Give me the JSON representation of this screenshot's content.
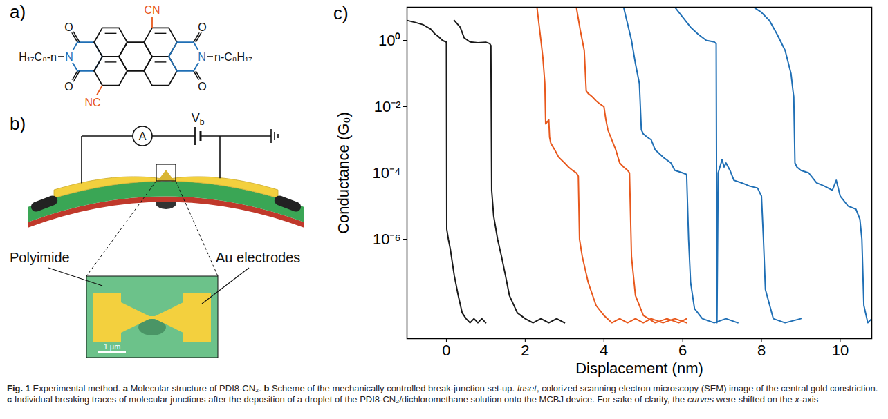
{
  "panel_a": {
    "letter": "a)",
    "atoms": {
      "cyano_top": "CN",
      "cyano_bottom": "NC",
      "nitrogen": "N",
      "oxygen": "O"
    },
    "chain_left": "H₁₇C₈-n",
    "chain_right": "n-C₈H₁₇"
  },
  "panel_b": {
    "letter": "b)",
    "ammeter": "A",
    "bias": {
      "text": "V",
      "subscript": "b"
    },
    "substrate_label": "Polyimide",
    "electrode_label": "Au electrodes",
    "scale_bar": "1 μm"
  },
  "panel_c": {
    "letter": "c)"
  },
  "chart_data": {
    "type": "line",
    "xlabel": "Displacement (nm)",
    "ylabel": "Conductance (G₀)",
    "log": "y",
    "grid": false,
    "xlim": [
      -1,
      10.8
    ],
    "xticks": [
      0,
      2,
      4,
      6,
      8,
      10
    ],
    "ylim": [
      1e-09,
      10
    ],
    "yticks": [
      {
        "value": 1,
        "label": "10⁰"
      },
      {
        "value": 0.01,
        "label": "10⁻²"
      },
      {
        "value": 0.0001,
        "label": "10⁻⁴"
      },
      {
        "value": 1e-06,
        "label": "10⁻⁶"
      }
    ],
    "series": [
      {
        "color": "#1a1a1a",
        "x": [
          -1,
          -0.8,
          -0.6,
          -0.4,
          -0.3,
          -0.2,
          -0.1,
          -0.02,
          0,
          0.01,
          0.05,
          0.1,
          0.15,
          0.2,
          0.3,
          0.4,
          0.5,
          0.6,
          0.7,
          0.8,
          0.9,
          1.0
        ],
        "values": [
          4.0,
          3.5,
          3.0,
          2.2,
          1.6,
          1.3,
          1.0,
          0.9,
          0.9,
          2e-06,
          1e-06,
          5e-07,
          2e-07,
          8e-08,
          2e-08,
          6e-09,
          4e-09,
          3e-09,
          4e-09,
          3e-09,
          4e-09,
          3e-09
        ]
      },
      {
        "color": "#1a1a1a",
        "x": [
          0.2,
          0.35,
          0.45,
          0.6,
          0.8,
          1.0,
          1.1,
          1.13,
          1.15,
          1.2,
          1.3,
          1.4,
          1.5,
          1.6,
          1.8,
          2.0,
          2.2,
          2.4,
          2.6,
          2.8,
          3.0
        ],
        "values": [
          4.0,
          2.5,
          1.2,
          0.9,
          0.85,
          0.88,
          0.8,
          0.7,
          3e-05,
          5e-06,
          1e-06,
          3e-07,
          8e-08,
          2e-08,
          6e-09,
          4e-09,
          3e-09,
          4e-09,
          3e-09,
          4e-09,
          3e-09
        ]
      },
      {
        "color": "#e8581c",
        "x": [
          2.3,
          2.4,
          2.45,
          2.5,
          2.52,
          2.6,
          2.62,
          2.65,
          2.75,
          2.85,
          3.0,
          3.1,
          3.2,
          3.3,
          3.35,
          3.38,
          3.45,
          3.6,
          3.8,
          4.0,
          4.2,
          4.4,
          4.6,
          4.8,
          5.0,
          5.2,
          5.5,
          5.8,
          6.1
        ],
        "values": [
          10,
          1.0,
          0.3,
          0.05,
          0.003,
          0.004,
          0.0012,
          0.0008,
          0.0005,
          0.0003,
          0.0002,
          0.00015,
          0.00012,
          0.0001,
          8e-05,
          1e-06,
          3e-07,
          5e-08,
          1e-08,
          5e-09,
          3e-09,
          4e-09,
          3e-09,
          4e-09,
          3e-09,
          4e-09,
          3e-09,
          4e-09,
          3e-09
        ]
      },
      {
        "color": "#e8581c",
        "x": [
          3.3,
          3.4,
          3.5,
          3.55,
          3.6,
          3.7,
          3.8,
          3.9,
          4.0,
          4.05,
          4.1,
          4.2,
          4.3,
          4.4,
          4.5,
          4.6,
          4.65,
          4.7,
          4.8,
          5.0,
          5.3,
          5.6,
          5.9,
          6.1
        ],
        "values": [
          10,
          2.0,
          0.5,
          0.03,
          0.025,
          0.02,
          0.015,
          0.012,
          0.01,
          0.004,
          0.002,
          0.001,
          0.0005,
          0.0002,
          0.00015,
          0.00012,
          0.0001,
          3e-07,
          2e-08,
          5e-09,
          3e-09,
          4e-09,
          3e-09,
          4e-09
        ]
      },
      {
        "color": "#1f6fb5",
        "x": [
          4.5,
          4.7,
          4.8,
          4.9,
          4.95,
          5.0,
          5.1,
          5.2,
          5.3,
          5.5,
          5.7,
          5.8,
          6.0,
          6.1,
          6.15,
          6.2,
          6.3,
          6.5,
          6.8,
          7.1,
          7.4
        ],
        "values": [
          10,
          1.0,
          0.2,
          0.05,
          0.002,
          0.0015,
          0.0012,
          0.001,
          0.0005,
          0.0003,
          0.0002,
          0.00012,
          0.0001,
          9e-05,
          1e-06,
          5e-08,
          8e-09,
          4e-09,
          3e-09,
          4e-09,
          3e-09
        ]
      },
      {
        "color": "#1f6fb5",
        "x": [
          5.8,
          6.0,
          6.2,
          6.4,
          6.6,
          6.8,
          6.85,
          6.87,
          6.9,
          7.0,
          7.05,
          7.1,
          7.2,
          7.3,
          7.5,
          7.7,
          7.9,
          8.0,
          8.05,
          8.1,
          8.3,
          8.6,
          9.0
        ],
        "values": [
          10,
          5.0,
          2.5,
          1.5,
          1.0,
          0.9,
          0.8,
          3e-09,
          0.0001,
          0.00025,
          0.00015,
          0.0002,
          0.00012,
          6e-05,
          5e-05,
          4e-05,
          3.5e-05,
          2e-05,
          1e-06,
          3e-08,
          4e-09,
          3e-09,
          4e-09
        ]
      },
      {
        "color": "#1f6fb5",
        "x": [
          7.8,
          8.0,
          8.2,
          8.4,
          8.6,
          8.75,
          8.8,
          8.82,
          8.85,
          8.9,
          9.0,
          9.2,
          9.4,
          9.6,
          9.8,
          9.9,
          10.0,
          10.2,
          10.4,
          10.5,
          10.55,
          10.6,
          10.7,
          10.8
        ],
        "values": [
          10,
          7.0,
          4.0,
          1.5,
          0.5,
          0.1,
          0.03,
          0.02,
          0.0002,
          0.00015,
          0.00012,
          0.0001,
          5e-05,
          4e-05,
          3e-05,
          6e-05,
          2e-05,
          1e-05,
          8e-06,
          4e-06,
          1e-06,
          1e-08,
          3e-09,
          4e-09
        ]
      }
    ]
  },
  "caption": [
    {
      "text": "Fig. 1",
      "style": "bold"
    },
    {
      "text": " Experimental method. ",
      "style": "normal"
    },
    {
      "text": "a",
      "style": "bold"
    },
    {
      "text": " Molecular structure of PDI8-CN₂. ",
      "style": "normal"
    },
    {
      "text": "b",
      "style": "bold"
    },
    {
      "text": " Scheme of the mechanically controlled break-junction set-up. ",
      "style": "normal"
    },
    {
      "text": "Inset",
      "style": "italic"
    },
    {
      "text": ", colorized scanning electron microscopy (SEM) image of the central gold constriction. ",
      "style": "normal"
    },
    {
      "text": "c",
      "style": "bold"
    },
    {
      "text": " Individual breaking traces of molecular junctions after the deposition of a droplet of the PDI8-CN₂/dichloromethane solution onto the MCBJ device. For sake of clarity, the ",
      "style": "normal"
    },
    {
      "text": "curves",
      "style": "italic"
    },
    {
      "text": " were shifted on the ",
      "style": "normal"
    },
    {
      "text": "x",
      "style": "italic"
    },
    {
      "text": "-axis",
      "style": "normal"
    }
  ]
}
